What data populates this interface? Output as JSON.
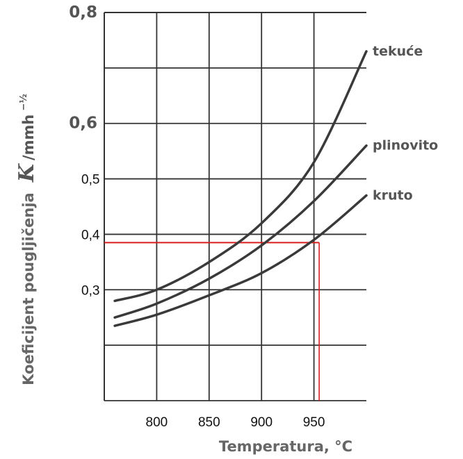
{
  "chart_data": {
    "type": "line",
    "xlabel": "Temperatura, °C",
    "ylabel": {
      "text": "Koeficijent pougljičenja",
      "symbol": "K",
      "unit": "/mmh",
      "exponent": "−½"
    },
    "xlim": [
      750,
      1000
    ],
    "ylim": [
      0.1,
      0.8
    ],
    "grid": true,
    "x_ticks": [
      "800",
      "850",
      "900",
      "950"
    ],
    "y_ticks": [
      {
        "value": 0.8,
        "label": "0,8",
        "style": "bold"
      },
      {
        "value": 0.6,
        "label": "0,6",
        "style": "bold"
      },
      {
        "value": 0.5,
        "label": "0,5",
        "style": "plain"
      },
      {
        "value": 0.4,
        "label": "0,4",
        "style": "plain"
      },
      {
        "value": 0.3,
        "label": "0,3",
        "style": "plain"
      }
    ],
    "series": [
      {
        "name": "tekuće",
        "x": [
          760,
          800,
          850,
          900,
          950,
          1000
        ],
        "y": [
          0.28,
          0.3,
          0.35,
          0.42,
          0.53,
          0.73
        ]
      },
      {
        "name": "plinovito",
        "x": [
          760,
          800,
          850,
          900,
          950,
          1000
        ],
        "y": [
          0.25,
          0.275,
          0.32,
          0.38,
          0.46,
          0.56
        ]
      },
      {
        "name": "kruto",
        "x": [
          760,
          800,
          850,
          900,
          950,
          1000
        ],
        "y": [
          0.235,
          0.255,
          0.29,
          0.33,
          0.39,
          0.47
        ]
      }
    ],
    "reference": {
      "y": 0.385,
      "x": 955,
      "color": "#d62020"
    },
    "colors": {
      "curve": "#3a3a3a",
      "grid": "#333333",
      "reference": "#d62020"
    }
  }
}
